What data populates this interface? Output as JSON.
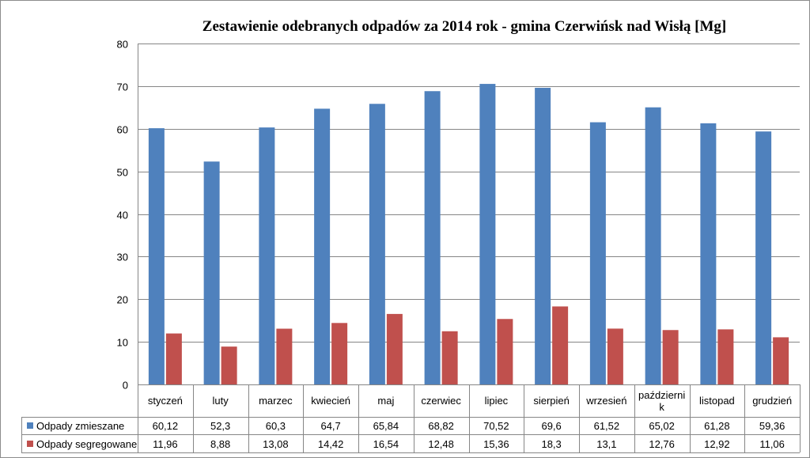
{
  "chart_data": {
    "type": "bar",
    "title": "Zestawienie  odebranych  odpadów  za 2014 rok  - gmina Czerwińsk  nad Wisłą  [Mg]",
    "categories": [
      "styczeń",
      "luty",
      "marzec",
      "kwiecień",
      "maj",
      "czerwiec",
      "lipiec",
      "sierpień",
      "wrzesień",
      "październik",
      "listopad",
      "grudzień"
    ],
    "category_display": [
      [
        "styczeń"
      ],
      [
        "luty"
      ],
      [
        "marzec"
      ],
      [
        "kwiecień"
      ],
      [
        "maj"
      ],
      [
        "czerwiec"
      ],
      [
        "lipiec"
      ],
      [
        "sierpień"
      ],
      [
        "wrzesień"
      ],
      [
        "październi",
        "k"
      ],
      [
        "listopad"
      ],
      [
        "grudzień"
      ]
    ],
    "series": [
      {
        "name": "Odpady zmieszane",
        "color": "#4f81bd",
        "values": [
          60.12,
          52.3,
          60.3,
          64.7,
          65.84,
          68.82,
          70.52,
          69.6,
          61.52,
          65.02,
          61.28,
          59.36
        ],
        "labels": [
          "60,12",
          "52,3",
          "60,3",
          "64,7",
          "65,84",
          "68,82",
          "70,52",
          "69,6",
          "61,52",
          "65,02",
          "61,28",
          "59,36"
        ]
      },
      {
        "name": "Odpady segregowane",
        "color": "#c0504d",
        "values": [
          11.96,
          8.88,
          13.08,
          14.42,
          16.54,
          12.48,
          15.36,
          18.3,
          13.1,
          12.76,
          12.92,
          11.06
        ],
        "labels": [
          "11,96",
          "8,88",
          "13,08",
          "14,42",
          "16,54",
          "12,48",
          "15,36",
          "18,3",
          "13,1",
          "12,76",
          "12,92",
          "11,06"
        ]
      }
    ],
    "ylim": [
      0,
      80
    ],
    "yticks": [
      0,
      10,
      20,
      30,
      40,
      50,
      60,
      70,
      80
    ],
    "grid": true,
    "legend": "data-table-left",
    "data_table": true
  }
}
